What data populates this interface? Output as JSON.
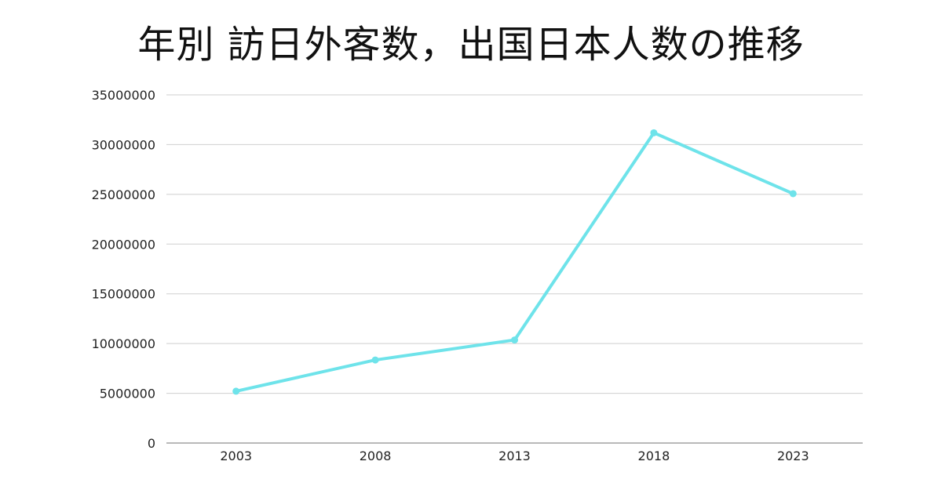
{
  "chart_data": {
    "type": "line",
    "title": "年別 訪日外客数，出国日本人数の推移",
    "xlabel": "",
    "ylabel": "",
    "categories": [
      "2003",
      "2008",
      "2013",
      "2018",
      "2023"
    ],
    "series": [
      {
        "values": [
          5210000,
          8350000,
          10360000,
          31190000,
          25070000
        ],
        "color": "#6ee3ea"
      }
    ],
    "ylim": [
      0,
      35000000
    ],
    "yticks": [
      "0",
      "5000000",
      "10000000",
      "15000000",
      "20000000",
      "25000000",
      "30000000",
      "35000000"
    ],
    "grid": true,
    "legend": "none"
  }
}
